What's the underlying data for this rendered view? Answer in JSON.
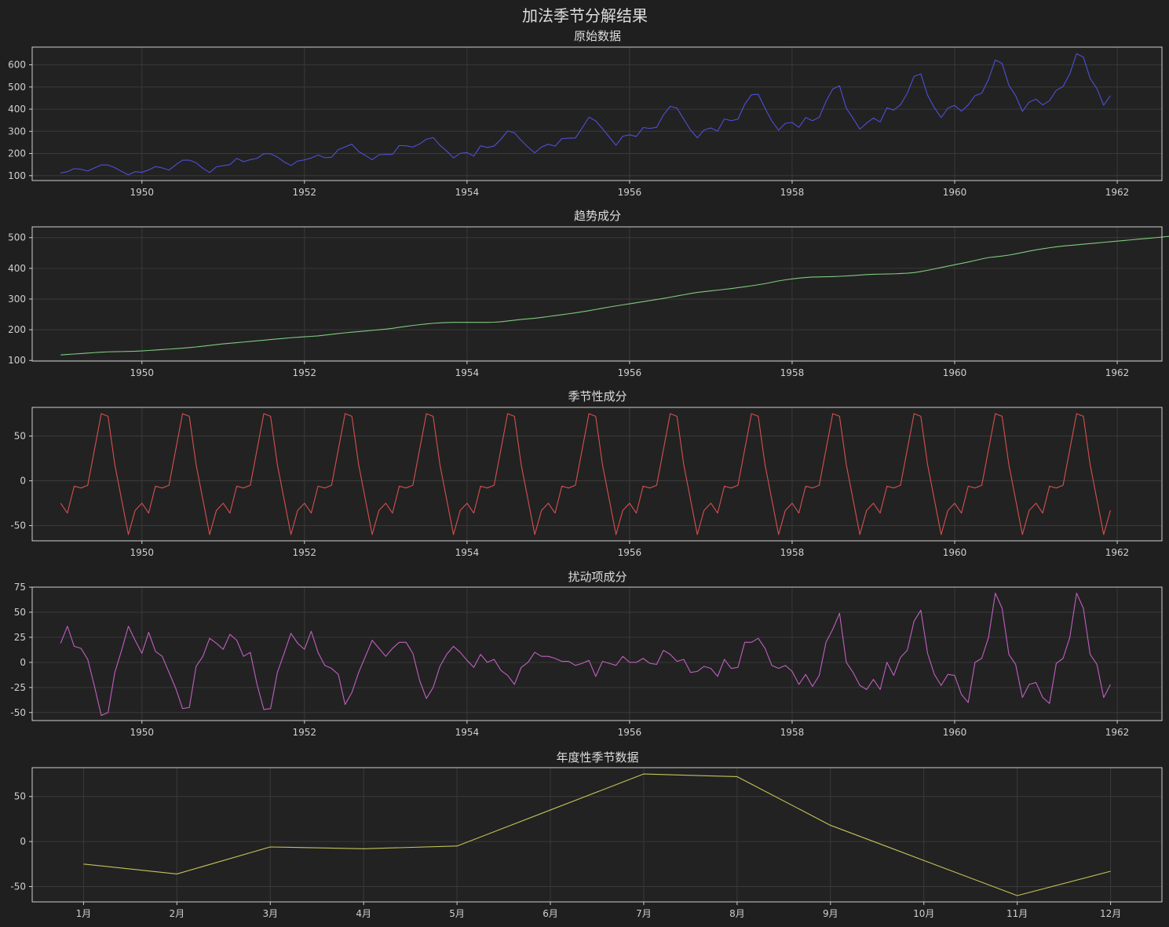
{
  "suptitle": "加法季节分解结果",
  "chart_data": [
    {
      "type": "line",
      "title": "原始数据",
      "color": "#4f4fd6",
      "x_start_year": 1949,
      "x_step_months": 1,
      "xticks": [
        1950,
        1952,
        1954,
        1956,
        1958,
        1960,
        1962
      ],
      "xlim": [
        1948.65,
        1962.55
      ],
      "yticks": [
        100,
        200,
        300,
        400,
        500,
        600
      ],
      "ylim": [
        78,
        680
      ],
      "values": [
        112,
        118,
        132,
        129,
        121,
        135,
        148,
        148,
        136,
        119,
        104,
        118,
        115,
        126,
        141,
        135,
        125,
        149,
        170,
        170,
        158,
        133,
        114,
        140,
        145,
        150,
        178,
        163,
        172,
        178,
        199,
        199,
        184,
        162,
        146,
        166,
        171,
        180,
        193,
        181,
        183,
        218,
        230,
        242,
        209,
        191,
        172,
        194,
        196,
        196,
        236,
        235,
        229,
        243,
        264,
        272,
        237,
        211,
        180,
        201,
        204,
        188,
        235,
        227,
        234,
        264,
        302,
        293,
        259,
        229,
        203,
        229,
        242,
        233,
        267,
        269,
        270,
        315,
        364,
        347,
        312,
        274,
        237,
        278,
        284,
        277,
        317,
        313,
        318,
        374,
        413,
        405,
        355,
        306,
        271,
        306,
        315,
        301,
        356,
        348,
        355,
        422,
        465,
        467,
        404,
        347,
        305,
        336,
        340,
        318,
        362,
        348,
        363,
        435,
        491,
        505,
        404,
        359,
        310,
        337,
        360,
        342,
        406,
        396,
        420,
        472,
        548,
        559,
        463,
        407,
        362,
        405,
        417,
        391,
        419,
        461,
        472,
        535,
        622,
        606,
        508,
        461,
        390,
        432,
        445,
        419,
        438,
        485,
        502,
        560,
        650,
        635,
        539,
        493,
        418,
        461
      ]
    },
    {
      "type": "line",
      "title": "趋势成分",
      "color": "#7fc97f",
      "x_start_year": 1949,
      "x_step_months": 1,
      "xticks": [
        1950,
        1952,
        1954,
        1956,
        1958,
        1960,
        1962
      ],
      "xlim": [
        1948.65,
        1962.55
      ],
      "yticks": [
        100,
        200,
        300,
        400,
        500
      ],
      "ylim": [
        98,
        535
      ],
      "values": [
        118,
        119.5,
        121,
        122.5,
        124,
        125.5,
        127,
        128,
        128.5,
        129,
        129.5,
        130,
        131,
        132.5,
        134,
        135.5,
        137,
        138.5,
        140,
        142,
        144,
        146.5,
        149,
        151.5,
        154,
        156,
        158,
        160,
        162,
        164,
        166,
        168,
        170,
        172,
        174,
        175.5,
        177,
        178.5,
        180,
        182.5,
        185,
        187.5,
        190,
        192,
        194,
        196,
        198,
        200,
        202,
        204.5,
        208,
        211,
        214,
        216.5,
        219,
        221,
        222.5,
        223.5,
        224,
        224,
        224,
        224,
        224,
        224,
        224.5,
        226,
        228.5,
        231,
        233.5,
        235.5,
        237.5,
        240,
        243,
        246,
        249,
        252,
        255,
        258.5,
        262,
        266,
        270,
        274,
        277.5,
        281,
        284.5,
        288,
        291.5,
        295,
        298.5,
        302,
        306,
        310,
        314,
        318,
        321.5,
        324,
        326.5,
        329,
        331.5,
        334,
        337,
        340,
        343,
        346.5,
        350,
        354.5,
        359,
        362.5,
        365.5,
        368,
        370,
        371.5,
        372,
        372.5,
        373,
        374,
        375,
        376.5,
        378,
        379.5,
        380.5,
        381,
        381.5,
        382,
        383,
        384,
        386,
        389.5,
        393.5,
        398,
        402.5,
        407,
        411.5,
        416,
        420.5,
        425.5,
        430.5,
        435,
        437.5,
        440,
        443,
        447,
        451.5,
        456,
        460,
        463.5,
        467,
        470,
        472.5,
        474.5,
        476.5,
        478.5,
        480.5,
        482.5,
        484.5,
        486.5,
        488.5,
        490.5,
        492.5,
        494.5,
        496.5,
        498.5,
        500.5,
        502.5,
        504.5,
        506.5,
        508.5,
        510.5,
        512.5,
        514.5,
        516.5
      ]
    },
    {
      "type": "line",
      "title": "季节性成分",
      "color": "#d64f4f",
      "x_start_year": 1949,
      "x_step_months": 1,
      "xticks": [
        1950,
        1952,
        1954,
        1956,
        1958,
        1960,
        1962
      ],
      "xlim": [
        1948.65,
        1962.55
      ],
      "yticks": [
        -50,
        0,
        50
      ],
      "ylim": [
        -67,
        82
      ],
      "pattern": [
        -25,
        -36,
        -6,
        -8,
        -5,
        35,
        75,
        72,
        18,
        -21,
        -60,
        -33
      ],
      "years": 13
    },
    {
      "type": "line",
      "title": "扰动项成分",
      "color": "#c05fc0",
      "x_start_year": 1949,
      "x_step_months": 1,
      "xticks": [
        1950,
        1952,
        1954,
        1956,
        1958,
        1960,
        1962
      ],
      "xlim": [
        1948.65,
        1962.55
      ],
      "yticks": [
        -50,
        -25,
        0,
        25,
        50,
        75
      ],
      "ylim": [
        -58,
        75
      ],
      "values": [
        19,
        36,
        16,
        14,
        3,
        -24,
        -53,
        -50,
        -10,
        12,
        36,
        22,
        9,
        30,
        11,
        6,
        -10,
        -26,
        -46,
        -45,
        -4,
        6,
        24,
        19,
        13,
        28,
        22,
        6,
        10,
        -22,
        -47,
        -46,
        -10,
        9,
        29,
        19,
        13,
        31,
        10,
        -3,
        -6,
        -12,
        -42,
        -30,
        -10,
        6,
        22,
        14,
        6,
        14,
        20,
        20,
        9,
        -18,
        -36,
        -25,
        -4,
        8,
        16,
        10,
        2,
        -5,
        8,
        0,
        3,
        -8,
        -13,
        -22,
        -5,
        0,
        10,
        6,
        6,
        4,
        1,
        1,
        -3,
        -1,
        2,
        -14,
        1,
        -1,
        -3,
        6,
        0,
        0,
        4,
        -1,
        -2,
        12,
        8,
        1,
        3,
        -10,
        -9,
        -4,
        -6,
        -14,
        3,
        -6,
        -5,
        20,
        20,
        24,
        14,
        -3,
        -6,
        -3,
        -9,
        -22,
        -12,
        -24,
        -13,
        20,
        33,
        49,
        0,
        -10,
        -23,
        -27,
        -17,
        -27,
        0,
        -13,
        5,
        12,
        41,
        52,
        9,
        -12,
        -23,
        -12,
        -13,
        -32,
        -40,
        0,
        4,
        25,
        69,
        54,
        8,
        -2,
        -35,
        -22,
        -20,
        -35,
        -41,
        -1,
        4,
        25,
        69,
        54,
        8,
        -2,
        -35,
        -22
      ]
    },
    {
      "type": "line",
      "title": "年度性季节数据",
      "color": "#c4c25a",
      "categories": [
        "1月",
        "2月",
        "3月",
        "4月",
        "5月",
        "6月",
        "7月",
        "8月",
        "9月",
        "10月",
        "11月",
        "12月"
      ],
      "values": [
        -25,
        -36,
        -6,
        -8,
        -5,
        35,
        75,
        72,
        18,
        -21,
        -60,
        -33
      ],
      "yticks": [
        -50,
        0,
        50
      ],
      "ylim": [
        -67,
        82
      ]
    }
  ]
}
